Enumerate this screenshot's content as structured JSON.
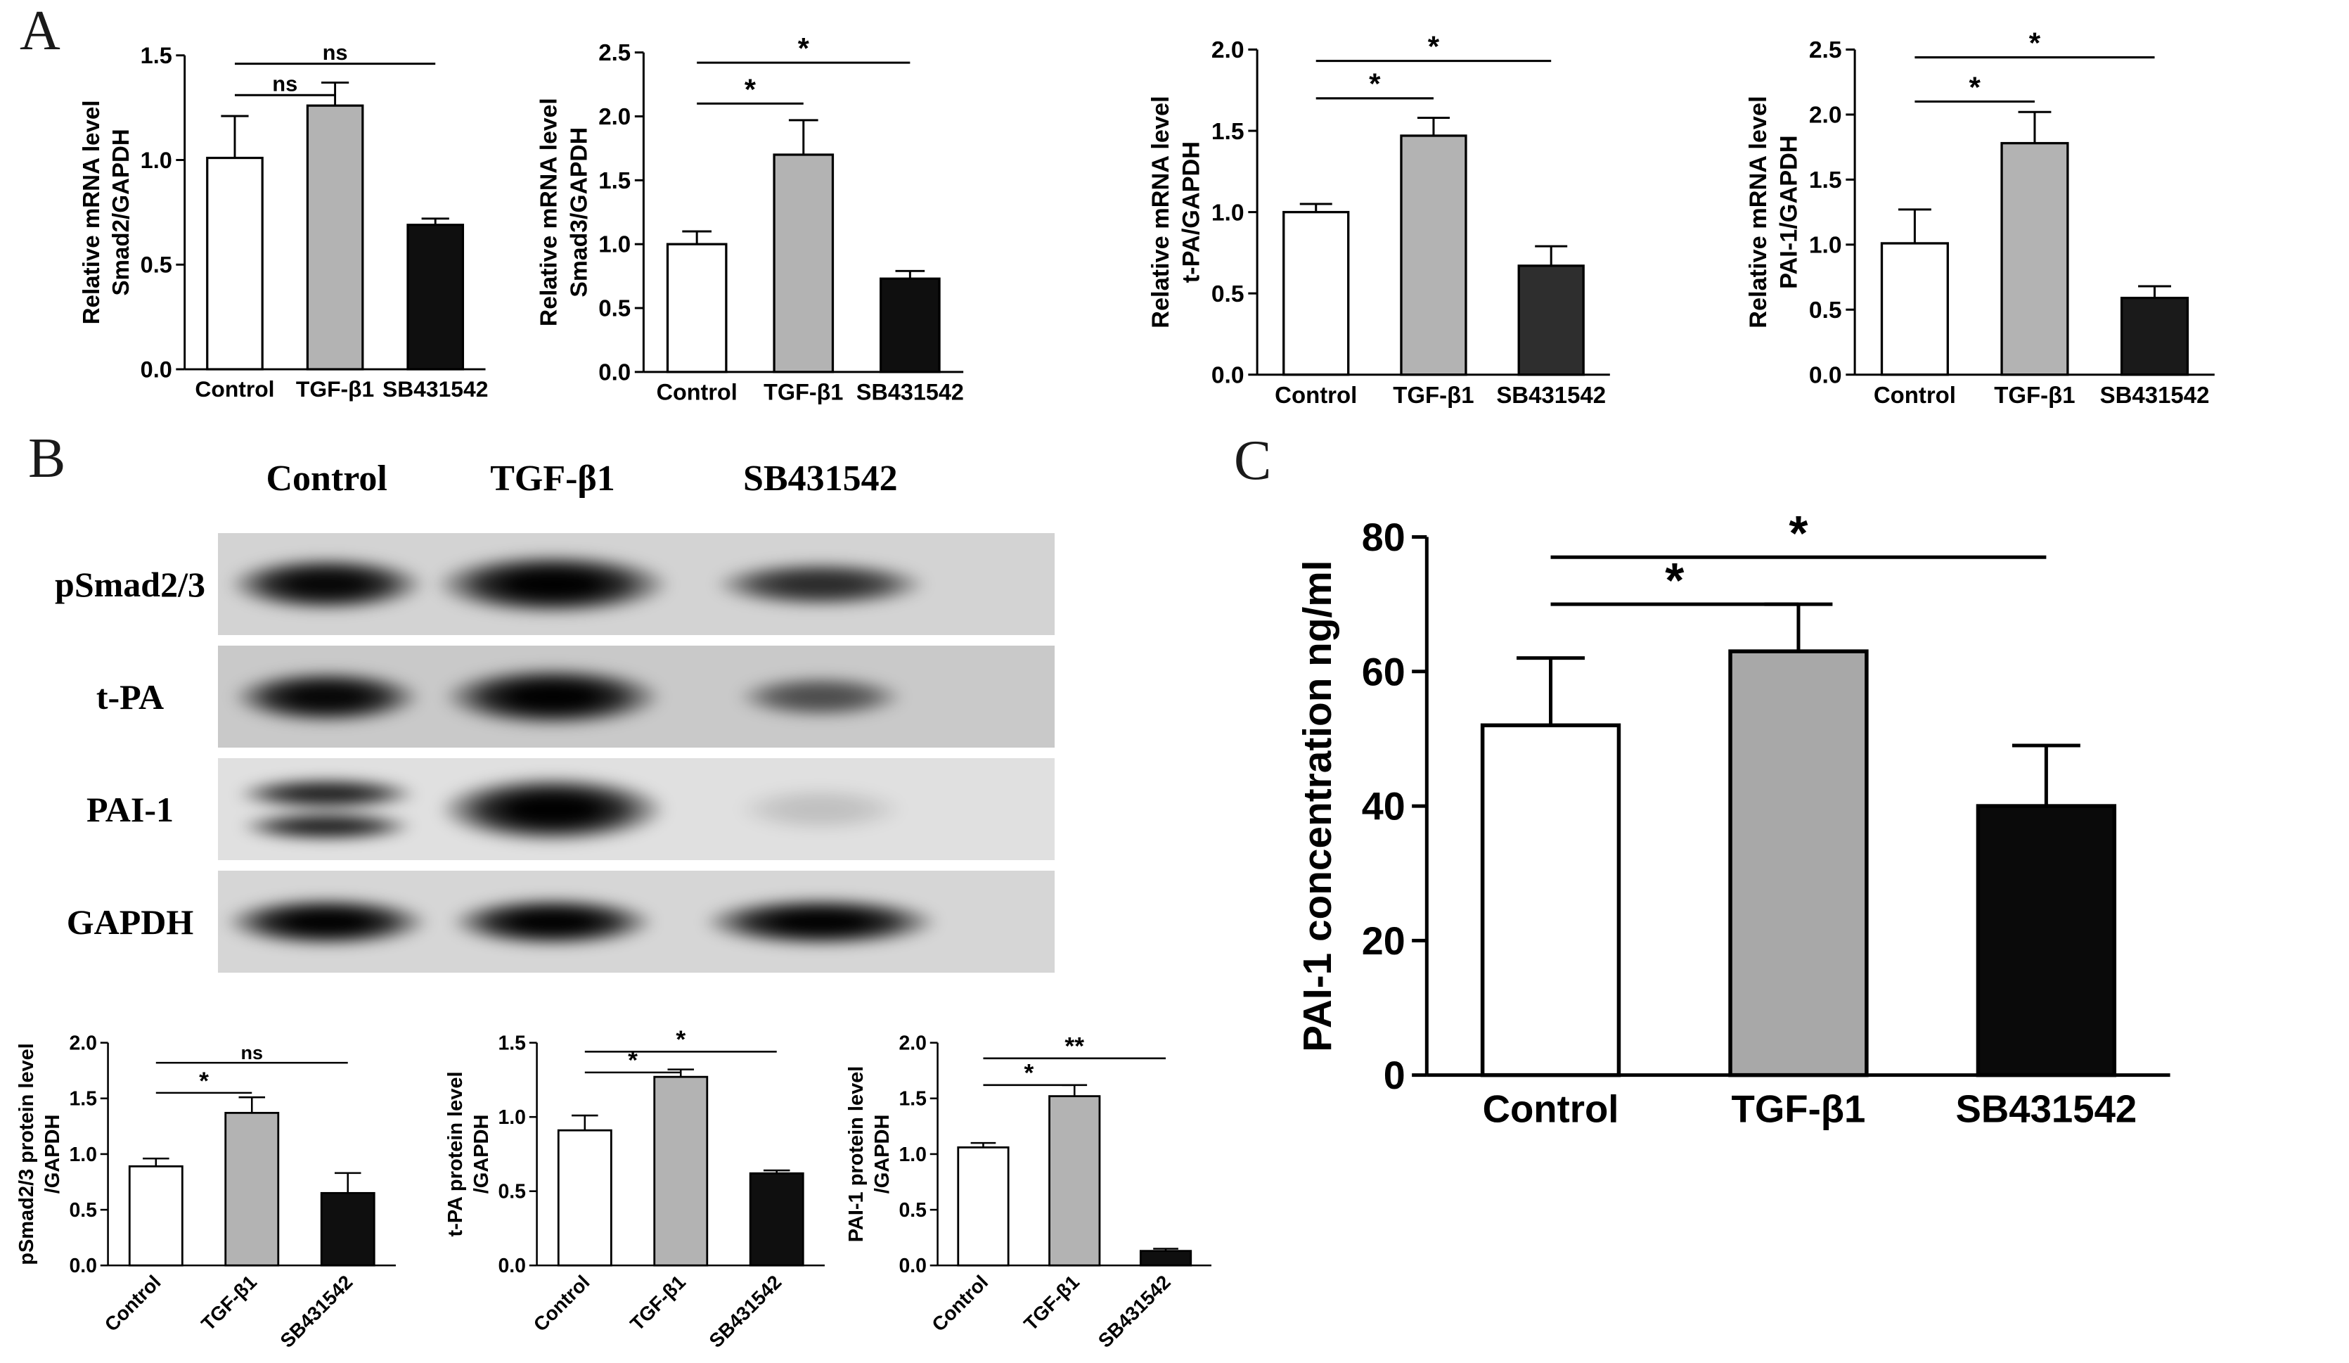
{
  "panels": {
    "a_label": "A",
    "b_label": "B",
    "c_label": "C"
  },
  "blot": {
    "col_headers": [
      "Control",
      "TGF-β1",
      "SB431542"
    ],
    "rows": [
      {
        "label": "pSmad2/3",
        "bg": "#d3d3d3",
        "bands": [
          {
            "intensity": 0.97,
            "w": 26,
            "h": 62
          },
          {
            "intensity": 1.0,
            "w": 31,
            "h": 70
          },
          {
            "intensity": 0.8,
            "w": 28,
            "h": 52
          }
        ]
      },
      {
        "label": "t-PA",
        "bg": "#c9c9c9",
        "bands": [
          {
            "intensity": 0.97,
            "w": 25,
            "h": 60
          },
          {
            "intensity": 1.0,
            "w": 29,
            "h": 68
          },
          {
            "intensity": 0.62,
            "w": 22,
            "h": 48
          }
        ]
      },
      {
        "label": "PAI-1",
        "bg": "#e0e0e0",
        "bands": [
          {
            "intensity": 0.85,
            "w": 24,
            "h": 70,
            "double": true
          },
          {
            "intensity": 1.0,
            "w": 30,
            "h": 76
          },
          {
            "intensity": 0.14,
            "w": 22,
            "h": 50
          }
        ]
      },
      {
        "label": "GAPDH",
        "bg": "#d6d6d6",
        "bands": [
          {
            "intensity": 1.0,
            "w": 27,
            "h": 56
          },
          {
            "intensity": 1.0,
            "w": 27,
            "h": 56
          },
          {
            "intensity": 1.0,
            "w": 31,
            "h": 56
          }
        ]
      }
    ]
  },
  "chart_data": [
    {
      "id": "smad2-mrna",
      "type": "bar",
      "ylabel_lines": [
        "Relative mRNA  level",
        "Smad2/GAPDH"
      ],
      "categories": [
        "Control",
        "TGF-β1",
        "SB431542"
      ],
      "values": [
        1.01,
        1.26,
        0.69
      ],
      "errors": [
        0.2,
        0.11,
        0.03
      ],
      "bar_colors": [
        "#ffffff",
        "#b3b3b3",
        "#0f0f0f"
      ],
      "ylim": [
        0,
        1.5
      ],
      "yticks": [
        0,
        0.5,
        1.0,
        1.5
      ],
      "xlabel_rotate": false,
      "significance": [
        {
          "from": 0,
          "to": 1,
          "label": "ns",
          "y": 1.31
        },
        {
          "from": 0,
          "to": 2,
          "label": "ns",
          "y": 1.46
        }
      ]
    },
    {
      "id": "smad3-mrna",
      "type": "bar",
      "ylabel_lines": [
        "Relative mRNA  level",
        "Smad3/GAPDH"
      ],
      "categories": [
        "Control",
        "TGF-β1",
        "SB431542"
      ],
      "values": [
        1.0,
        1.7,
        0.73
      ],
      "errors": [
        0.1,
        0.27,
        0.06
      ],
      "bar_colors": [
        "#ffffff",
        "#b3b3b3",
        "#0f0f0f"
      ],
      "ylim": [
        0,
        2.5
      ],
      "yticks": [
        0,
        0.5,
        1.0,
        1.5,
        2.0,
        2.5
      ],
      "xlabel_rotate": false,
      "significance": [
        {
          "from": 0,
          "to": 1,
          "label": "*",
          "y": 2.1
        },
        {
          "from": 0,
          "to": 2,
          "label": "*",
          "y": 2.42
        }
      ]
    },
    {
      "id": "tpa-mrna",
      "type": "bar",
      "ylabel_lines": [
        "Relative mRNA  level",
        "t-PA/GAPDH"
      ],
      "categories": [
        "Control",
        "TGF-β1",
        "SB431542"
      ],
      "values": [
        1.0,
        1.47,
        0.67
      ],
      "errors": [
        0.05,
        0.11,
        0.12
      ],
      "bar_colors": [
        "#ffffff",
        "#b3b3b3",
        "#2e2e2e"
      ],
      "ylim": [
        0,
        2.0
      ],
      "yticks": [
        0,
        0.5,
        1.0,
        1.5,
        2.0
      ],
      "xlabel_rotate": false,
      "significance": [
        {
          "from": 0,
          "to": 1,
          "label": "*",
          "y": 1.7
        },
        {
          "from": 0,
          "to": 2,
          "label": "*",
          "y": 1.93
        }
      ]
    },
    {
      "id": "pai1-mrna",
      "type": "bar",
      "ylabel_lines": [
        "Relative mRNA  level",
        "PAI-1/GAPDH"
      ],
      "categories": [
        "Control",
        "TGF-β1",
        "SB431542"
      ],
      "values": [
        1.01,
        1.78,
        0.59
      ],
      "errors": [
        0.26,
        0.24,
        0.09
      ],
      "bar_colors": [
        "#ffffff",
        "#b3b3b3",
        "#1a1a1a"
      ],
      "ylim": [
        0,
        2.5
      ],
      "yticks": [
        0,
        0.5,
        1.0,
        1.5,
        2.0,
        2.5
      ],
      "xlabel_rotate": false,
      "significance": [
        {
          "from": 0,
          "to": 1,
          "label": "*",
          "y": 2.1
        },
        {
          "from": 0,
          "to": 2,
          "label": "*",
          "y": 2.44
        }
      ]
    },
    {
      "id": "psmad23-protein",
      "type": "bar",
      "ylabel_lines": [
        "pSmad2/3 protein level",
        "/GAPDH"
      ],
      "categories": [
        "Control",
        "TGF-β1",
        "SB431542"
      ],
      "values": [
        0.89,
        1.37,
        0.65
      ],
      "errors": [
        0.07,
        0.14,
        0.18
      ],
      "bar_colors": [
        "#ffffff",
        "#b3b3b3",
        "#0f0f0f"
      ],
      "ylim": [
        0,
        2.0
      ],
      "yticks": [
        0,
        0.5,
        1.0,
        1.5,
        2.0
      ],
      "xlabel_rotate": true,
      "significance": [
        {
          "from": 0,
          "to": 1,
          "label": "*",
          "y": 1.55
        },
        {
          "from": 0,
          "to": 2,
          "label": "ns",
          "y": 1.82
        }
      ]
    },
    {
      "id": "tpa-protein",
      "type": "bar",
      "ylabel_lines": [
        "t-PA protein level",
        "/GAPDH"
      ],
      "categories": [
        "Control",
        "TGF-β1",
        "SB431542"
      ],
      "values": [
        0.91,
        1.27,
        0.62
      ],
      "errors": [
        0.1,
        0.05,
        0.02
      ],
      "bar_colors": [
        "#ffffff",
        "#b3b3b3",
        "#0f0f0f"
      ],
      "ylim": [
        0,
        1.5
      ],
      "yticks": [
        0,
        0.5,
        1.0,
        1.5
      ],
      "xlabel_rotate": true,
      "significance": [
        {
          "from": 0,
          "to": 1,
          "label": "*",
          "y": 1.3
        },
        {
          "from": 0,
          "to": 2,
          "label": "*",
          "y": 1.44
        }
      ]
    },
    {
      "id": "pai1-protein",
      "type": "bar",
      "ylabel_lines": [
        "PAI-1 protein level",
        "/GAPDH"
      ],
      "categories": [
        "Control",
        "TGF-β1",
        "SB431542"
      ],
      "values": [
        1.06,
        1.52,
        0.13
      ],
      "errors": [
        0.04,
        0.1,
        0.02
      ],
      "bar_colors": [
        "#ffffff",
        "#b3b3b3",
        "#0f0f0f"
      ],
      "ylim": [
        0,
        2.0
      ],
      "yticks": [
        0,
        0.5,
        1.0,
        1.5,
        2.0
      ],
      "xlabel_rotate": true,
      "significance": [
        {
          "from": 0,
          "to": 1,
          "label": "*",
          "y": 1.62
        },
        {
          "from": 0,
          "to": 2,
          "label": "**",
          "y": 1.86
        }
      ]
    },
    {
      "id": "pai1-concentration",
      "type": "bar",
      "ylabel_lines": [
        "PAI-1 concentration ng/ml"
      ],
      "categories": [
        "Control",
        "TGF-β1",
        "SB431542"
      ],
      "values": [
        52,
        63,
        40
      ],
      "errors": [
        10,
        7,
        9
      ],
      "bar_colors": [
        "#ffffff",
        "#a8a8a8",
        "#0a0a0a"
      ],
      "ylim": [
        0,
        80
      ],
      "yticks": [
        0,
        20,
        40,
        60,
        80
      ],
      "xlabel_rotate": false,
      "significance": [
        {
          "from": 0,
          "to": 1,
          "label": "*",
          "y": 70
        },
        {
          "from": 0,
          "to": 2,
          "label": "*",
          "y": 77
        }
      ]
    }
  ]
}
